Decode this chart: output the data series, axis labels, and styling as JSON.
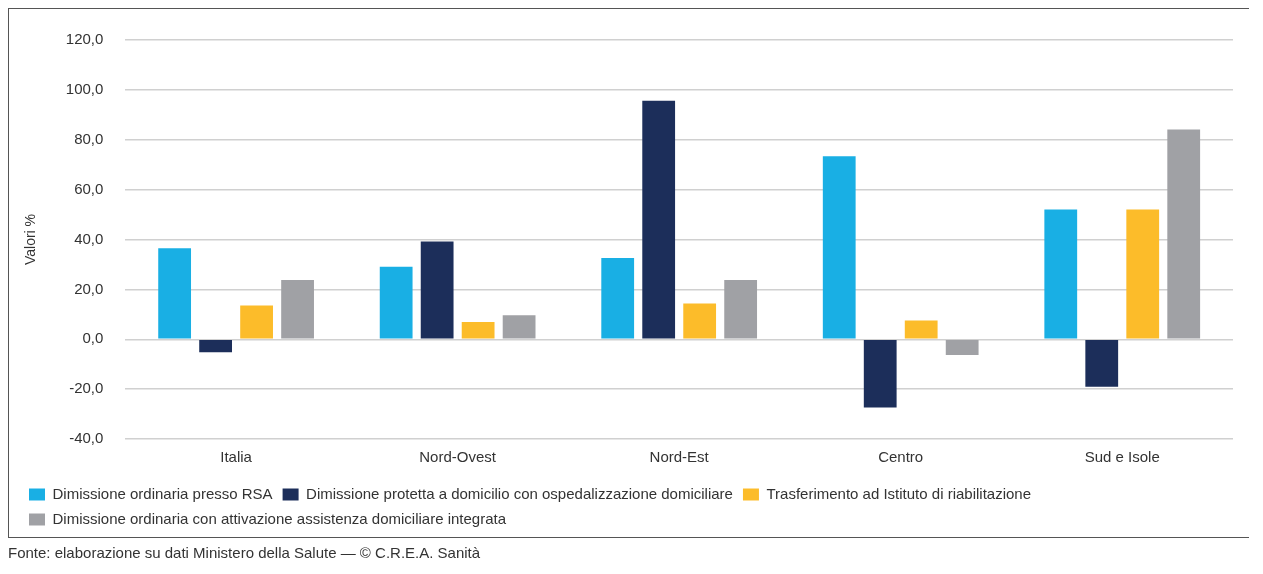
{
  "chart_data": {
    "type": "bar",
    "ylabel": "Valori %",
    "categories": [
      "Italia",
      "Nord-Ovest",
      "Nord-Est",
      "Centro",
      "Sud e Isole"
    ],
    "series": [
      {
        "name": "Dimissione ordinaria presso RSA",
        "color": "#19afe4",
        "values": [
          36.5,
          29.1,
          32.6,
          73.4,
          52.0
        ]
      },
      {
        "name": "Dimissione protetta a domicilio con ospedalizzazione domiciliare",
        "color": "#1c2e5a",
        "values": [
          -5.2,
          39.2,
          95.6,
          -27.4,
          -19.0
        ]
      },
      {
        "name": "Trasferimento ad Istituto di riabilitazione",
        "color": "#fcbc2a",
        "values": [
          13.5,
          6.9,
          14.3,
          7.5,
          52.0
        ]
      },
      {
        "name": "Dimissione ordinaria con attivazione assistenza domiciliare integrata",
        "color": "#a0a1a5",
        "values": [
          23.8,
          9.6,
          23.8,
          -6.3,
          84.1
        ]
      }
    ],
    "ylim": [
      -40,
      120
    ],
    "yticks": [
      {
        "value": -40,
        "label": "-40,0"
      },
      {
        "value": -20,
        "label": "-20,0"
      },
      {
        "value": 0,
        "label": "0,0"
      },
      {
        "value": 20,
        "label": "20,0"
      },
      {
        "value": 40,
        "label": "40,0"
      },
      {
        "value": 60,
        "label": "60,0"
      },
      {
        "value": 80,
        "label": "80,0"
      },
      {
        "value": 100,
        "label": "100,0"
      },
      {
        "value": 120,
        "label": "120,0"
      }
    ],
    "grid": "y",
    "legend": "bottom",
    "annotations": [
      "Fonte: elaborazione su dati Ministero della Salute — © C.R.E.A. Sanità"
    ]
  }
}
